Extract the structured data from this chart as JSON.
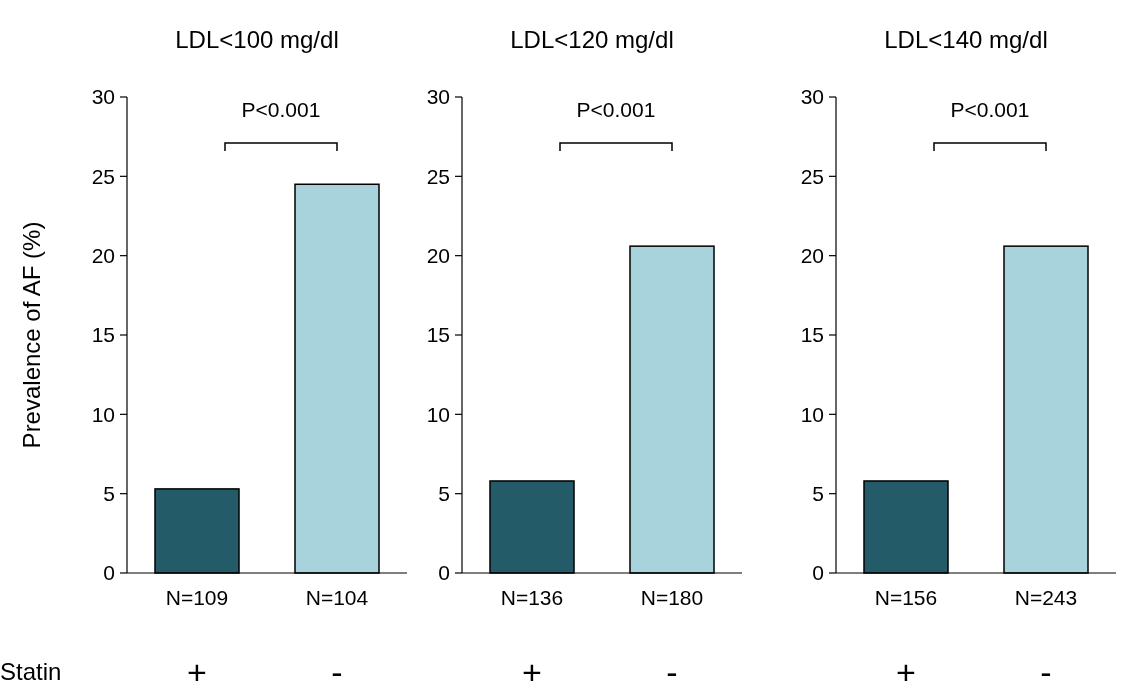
{
  "chart_data": [
    {
      "type": "bar",
      "title": "LDL<100 mg/dl",
      "ylabel": "Prevalence of AF (%)",
      "xlabel": "Statin",
      "categories": [
        "N=109",
        "N=104"
      ],
      "values": [
        5.3,
        24.5
      ],
      "colors": [
        "#245b69",
        "#a9d3dc"
      ],
      "ylim": [
        0,
        30
      ],
      "yticks": [
        0,
        5,
        10,
        15,
        20,
        25,
        30
      ],
      "annotations": [
        "P<0.001",
        "+",
        "-"
      ]
    },
    {
      "type": "bar",
      "title": "LDL<120 mg/dl",
      "categories": [
        "N=136",
        "N=180"
      ],
      "values": [
        5.8,
        20.6
      ],
      "colors": [
        "#245b69",
        "#a9d3dc"
      ],
      "ylim": [
        0,
        30
      ],
      "yticks": [
        0,
        5,
        10,
        15,
        20,
        25,
        30
      ],
      "annotations": [
        "P<0.001",
        "+",
        "-"
      ]
    },
    {
      "type": "bar",
      "title": "LDL<140 mg/dl",
      "categories": [
        "N=156",
        "N=243"
      ],
      "values": [
        5.8,
        20.6
      ],
      "colors": [
        "#245b69",
        "#a9d3dc"
      ],
      "ylim": [
        0,
        30
      ],
      "yticks": [
        0,
        5,
        10,
        15,
        20,
        25,
        30
      ],
      "annotations": [
        "P<0.001",
        "+",
        "-"
      ]
    }
  ]
}
